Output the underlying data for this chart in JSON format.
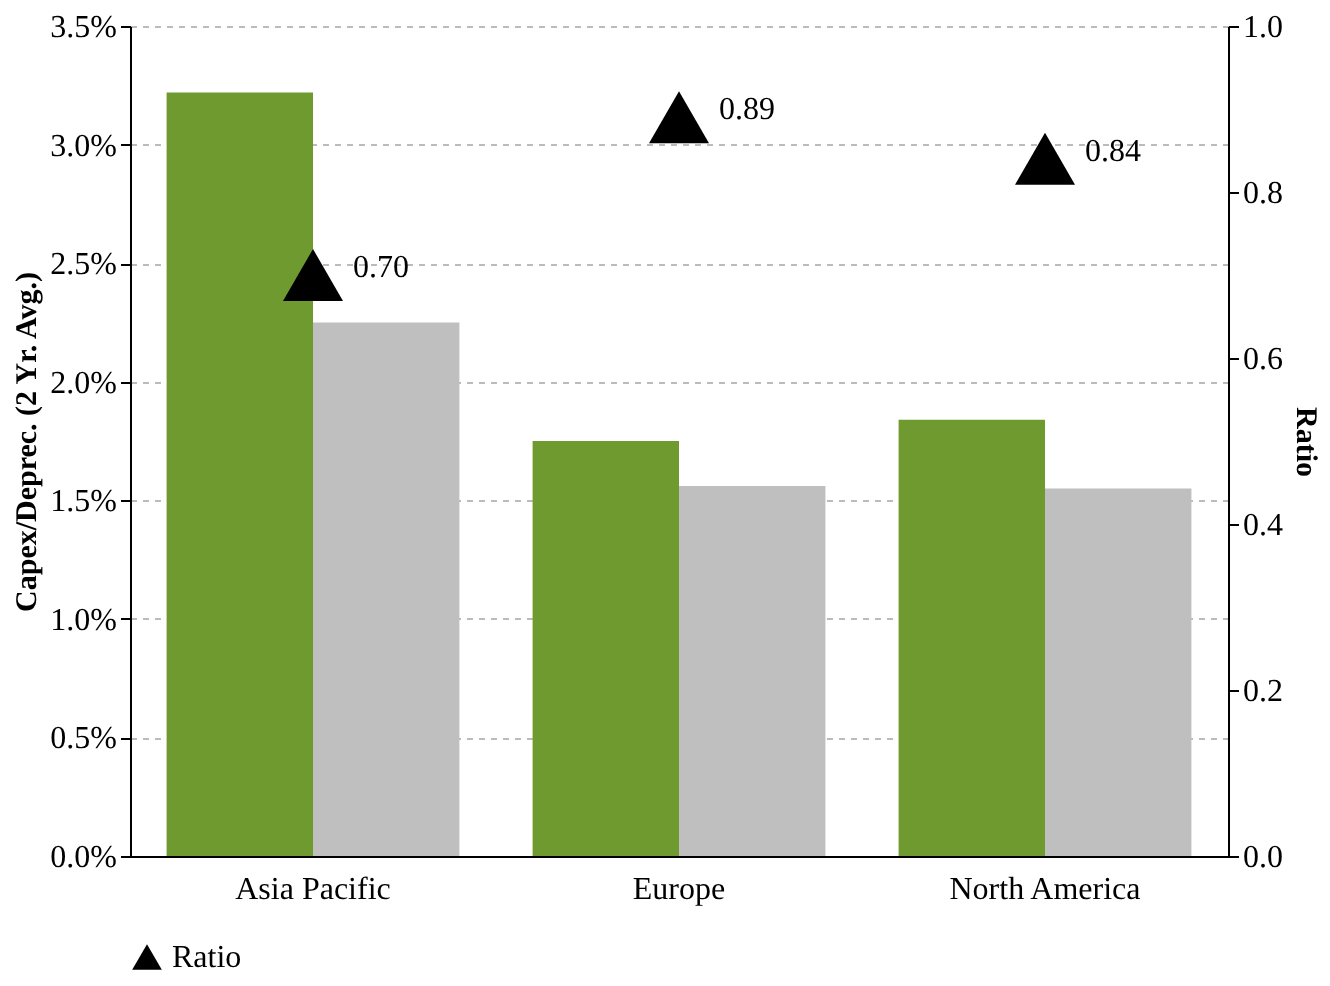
{
  "chart_data": {
    "type": "bar",
    "categories": [
      "Asia Pacific",
      "Europe",
      "North America"
    ],
    "ylabel": "Capex/Deprec. (2 Yr. Avg.)",
    "y2label": "Ratio",
    "ylim": [
      0,
      3.5
    ],
    "yticks": [
      {
        "value": 0,
        "label": "0.0%"
      },
      {
        "value": 0.5,
        "label": "0.5%"
      },
      {
        "value": 1,
        "label": "1.0%"
      },
      {
        "value": 1.5,
        "label": "1.5%"
      },
      {
        "value": 2,
        "label": "2.0%"
      },
      {
        "value": 2.5,
        "label": "2.5%"
      },
      {
        "value": 3,
        "label": "3.0%"
      },
      {
        "value": 3.5,
        "label": "3.5%"
      }
    ],
    "y2lim": [
      0,
      1
    ],
    "y2ticks": [
      {
        "value": 0,
        "label": "0.0"
      },
      {
        "value": 0.2,
        "label": "0.2"
      },
      {
        "value": 0.4,
        "label": "0.4"
      },
      {
        "value": 0.6,
        "label": "0.6"
      },
      {
        "value": 0.8,
        "label": "0.8"
      },
      {
        "value": 1,
        "label": "1.0"
      }
    ],
    "grid": "y",
    "legend": "bottom",
    "marker": "triangle",
    "series": [
      {
        "color": "#6f9a30",
        "values": [
          3.22,
          1.75,
          1.84
        ]
      },
      {
        "color": "#bfbfbf",
        "values": [
          2.25,
          1.56,
          1.55
        ]
      },
      {
        "name": "Ratio",
        "type": "scatter",
        "axis": "y2",
        "color": "#000000",
        "values": [
          0.7,
          0.89,
          0.84
        ],
        "value_labels": [
          "0.70",
          "0.89",
          "0.84"
        ]
      }
    ]
  }
}
